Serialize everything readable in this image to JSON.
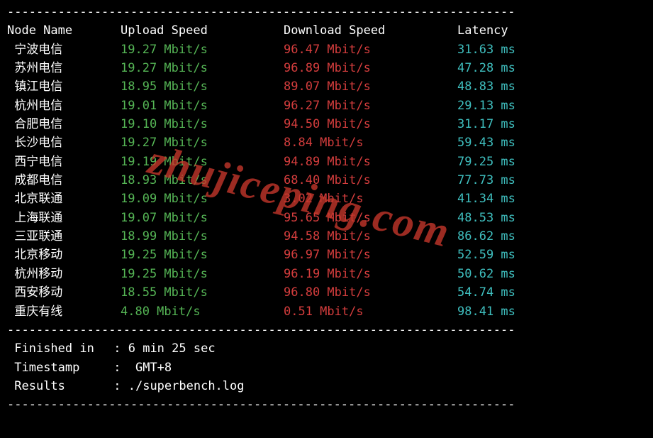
{
  "divider": "----------------------------------------------------------------------",
  "headers": {
    "node": "Node Name",
    "upload": "Upload Speed",
    "download": "Download Speed",
    "latency": "Latency"
  },
  "colors": {
    "background": "#000000",
    "text": "#ffffff",
    "upload": "#55b555",
    "download": "#d43d3d",
    "latency": "#3fbfbf",
    "watermark": "#c8382c"
  },
  "rows": [
    {
      "node": "宁波电信",
      "upload": "19.27 Mbit/s",
      "download": "96.47 Mbit/s",
      "latency": "31.63 ms"
    },
    {
      "node": "苏州电信",
      "upload": "19.27 Mbit/s",
      "download": "96.89 Mbit/s",
      "latency": "47.28 ms"
    },
    {
      "node": "镇江电信",
      "upload": "18.95 Mbit/s",
      "download": "89.07 Mbit/s",
      "latency": "48.83 ms"
    },
    {
      "node": "杭州电信",
      "upload": "19.01 Mbit/s",
      "download": "96.27 Mbit/s",
      "latency": "29.13 ms"
    },
    {
      "node": "合肥电信",
      "upload": "19.10 Mbit/s",
      "download": "94.50 Mbit/s",
      "latency": "31.17 ms"
    },
    {
      "node": "长沙电信",
      "upload": "19.27 Mbit/s",
      "download": "8.84 Mbit/s",
      "latency": "59.43 ms"
    },
    {
      "node": "西宁电信",
      "upload": "19.19 Mbit/s",
      "download": "94.89 Mbit/s",
      "latency": "79.25 ms"
    },
    {
      "node": "成都电信",
      "upload": "18.93 Mbit/s",
      "download": "68.40 Mbit/s",
      "latency": "77.73 ms"
    },
    {
      "node": "北京联通",
      "upload": "19.09 Mbit/s",
      "download": "3.02 Mbit/s",
      "latency": "41.34 ms"
    },
    {
      "node": "上海联通",
      "upload": "19.07 Mbit/s",
      "download": "95.65 Mbit/s",
      "latency": "48.53 ms"
    },
    {
      "node": "三亚联通",
      "upload": "18.99 Mbit/s",
      "download": "94.58 Mbit/s",
      "latency": "86.62 ms"
    },
    {
      "node": "北京移动",
      "upload": "19.25 Mbit/s",
      "download": "96.97 Mbit/s",
      "latency": "52.59 ms"
    },
    {
      "node": "杭州移动",
      "upload": "19.25 Mbit/s",
      "download": "96.19 Mbit/s",
      "latency": "50.62 ms"
    },
    {
      "node": "西安移动",
      "upload": "18.55 Mbit/s",
      "download": "96.80 Mbit/s",
      "latency": "54.74 ms"
    },
    {
      "node": "重庆有线",
      "upload": "4.80 Mbit/s",
      "download": "0.51 Mbit/s",
      "latency": "98.41 ms"
    }
  ],
  "footer": {
    "finished_label": "Finished in",
    "finished_value": "6 min 25 sec",
    "timestamp_label": "Timestamp",
    "timestamp_value": "GMT+8",
    "results_label": "Results",
    "results_value": "./superbench.log"
  },
  "watermark": "zhujiceping.com"
}
